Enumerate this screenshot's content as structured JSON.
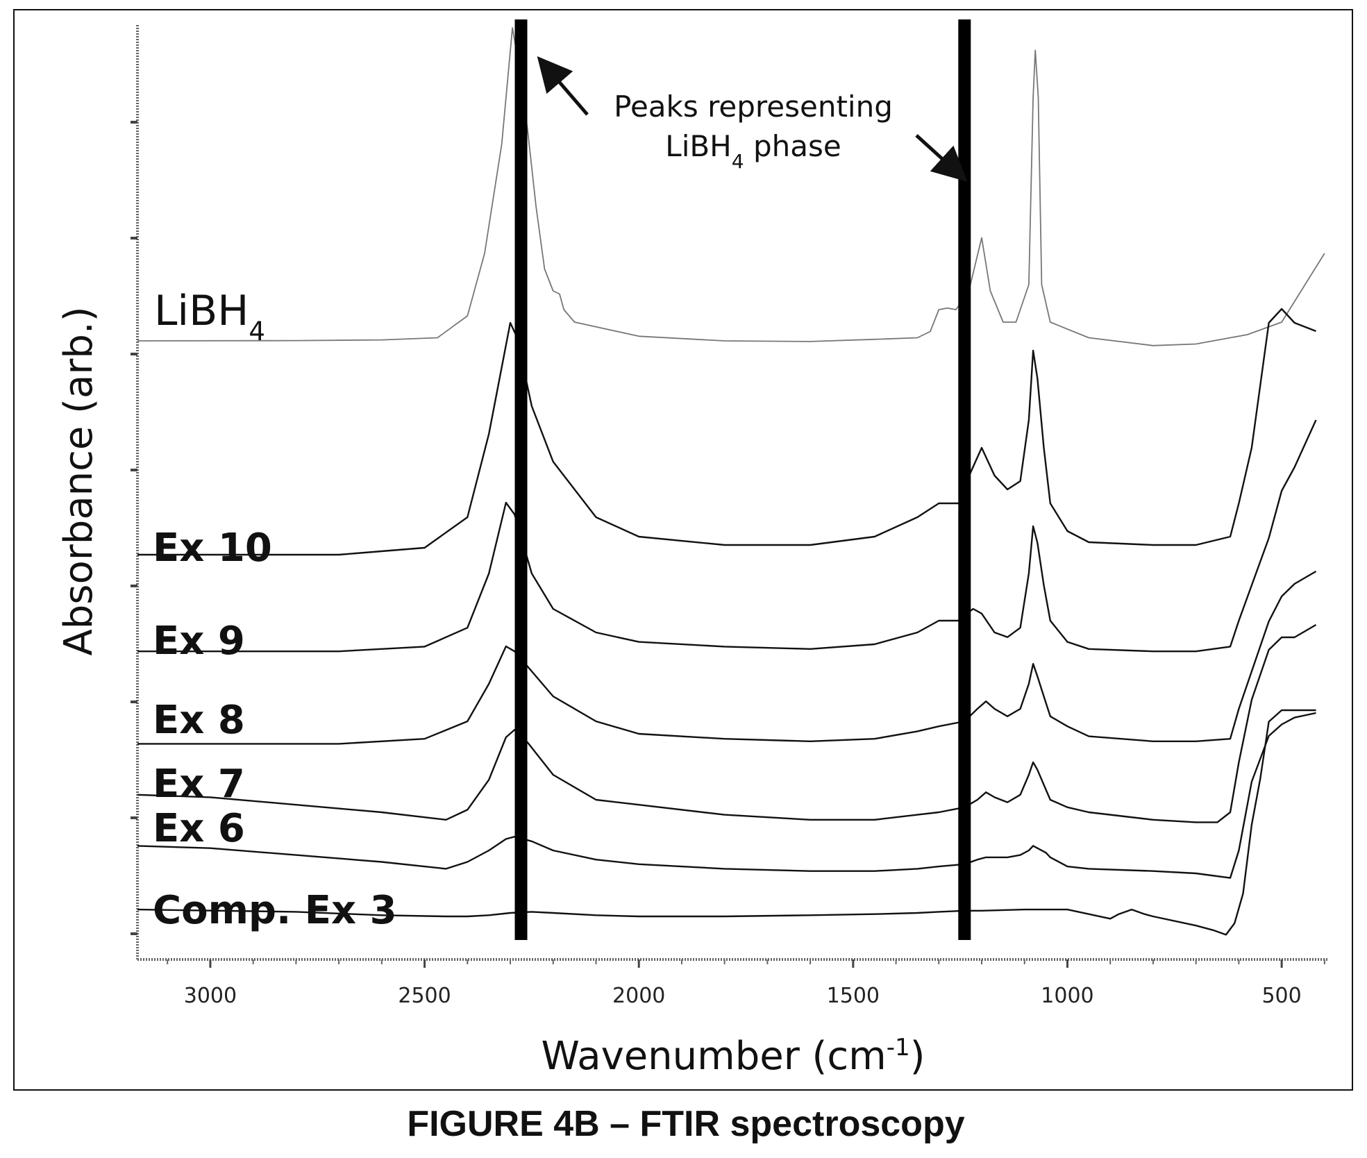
{
  "caption": "FIGURE 4B – FTIR spectroscopy",
  "chart_data": {
    "type": "line",
    "title": "",
    "xlabel": "Wavenumber (cm",
    "xlabel_sup": "-1",
    "xlabel_suffix": ")",
    "ylabel": "Absorbance (arb.)",
    "x_reversed": true,
    "xlim": [
      3170,
      390
    ],
    "x_ticks": [
      3000,
      2500,
      2000,
      1500,
      1000,
      500
    ],
    "grid": false,
    "annotation": {
      "line1": "Peaks representing",
      "line2_prefix": "LiBH",
      "line2_sub": "4",
      "line2_suffix": " phase",
      "marked_wavenumbers": [
        2275,
        1240
      ]
    },
    "series": [
      {
        "name": "LiBH",
        "name_sub": "4",
        "stroke": "#777777",
        "bold": false,
        "points": [
          [
            3170,
            0.2
          ],
          [
            2800,
            0.21
          ],
          [
            2600,
            0.23
          ],
          [
            2470,
            0.3
          ],
          [
            2400,
            1.0
          ],
          [
            2360,
            3.0
          ],
          [
            2320,
            6.5
          ],
          [
            2295,
            10.5
          ],
          [
            2280,
            9.0
          ],
          [
            2260,
            7.0
          ],
          [
            2240,
            4.5
          ],
          [
            2220,
            2.5
          ],
          [
            2200,
            1.8
          ],
          [
            2185,
            1.7
          ],
          [
            2175,
            1.2
          ],
          [
            2150,
            0.8
          ],
          [
            2000,
            0.35
          ],
          [
            1800,
            0.2
          ],
          [
            1600,
            0.18
          ],
          [
            1450,
            0.25
          ],
          [
            1350,
            0.3
          ],
          [
            1320,
            0.5
          ],
          [
            1300,
            1.2
          ],
          [
            1280,
            1.25
          ],
          [
            1260,
            1.2
          ],
          [
            1230,
            1.8
          ],
          [
            1200,
            3.5
          ],
          [
            1180,
            1.8
          ],
          [
            1150,
            0.8
          ],
          [
            1120,
            0.8
          ],
          [
            1090,
            2.0
          ],
          [
            1080,
            8.0
          ],
          [
            1075,
            9.5
          ],
          [
            1068,
            8.0
          ],
          [
            1060,
            2.0
          ],
          [
            1040,
            0.8
          ],
          [
            950,
            0.3
          ],
          [
            800,
            0.05
          ],
          [
            700,
            0.1
          ],
          [
            620,
            0.3
          ],
          [
            580,
            0.4
          ],
          [
            560,
            0.5
          ],
          [
            500,
            0.8
          ],
          [
            400,
            3.0
          ]
        ]
      },
      {
        "name": "Ex 10",
        "stroke": "#111111",
        "bold": true,
        "points": [
          [
            3170,
            0.15
          ],
          [
            2700,
            0.15
          ],
          [
            2500,
            0.4
          ],
          [
            2400,
            1.5
          ],
          [
            2350,
            4.5
          ],
          [
            2300,
            8.5
          ],
          [
            2285,
            8.0
          ],
          [
            2250,
            5.5
          ],
          [
            2200,
            3.5
          ],
          [
            2100,
            1.5
          ],
          [
            2000,
            0.8
          ],
          [
            1800,
            0.5
          ],
          [
            1600,
            0.5
          ],
          [
            1450,
            0.8
          ],
          [
            1350,
            1.5
          ],
          [
            1300,
            2.0
          ],
          [
            1270,
            2.0
          ],
          [
            1250,
            2.0
          ],
          [
            1235,
            2.8
          ],
          [
            1200,
            4.0
          ],
          [
            1170,
            3.0
          ],
          [
            1140,
            2.5
          ],
          [
            1110,
            2.8
          ],
          [
            1090,
            5.0
          ],
          [
            1080,
            7.5
          ],
          [
            1070,
            6.5
          ],
          [
            1055,
            4.0
          ],
          [
            1040,
            2.0
          ],
          [
            1000,
            1.0
          ],
          [
            950,
            0.6
          ],
          [
            800,
            0.5
          ],
          [
            700,
            0.5
          ],
          [
            620,
            0.8
          ],
          [
            600,
            2.0
          ],
          [
            570,
            4.0
          ],
          [
            530,
            8.5
          ],
          [
            500,
            9.0
          ],
          [
            470,
            8.5
          ],
          [
            420,
            8.2
          ]
        ]
      },
      {
        "name": "Ex 9",
        "stroke": "#111111",
        "bold": true,
        "points": [
          [
            3170,
            0.2
          ],
          [
            2700,
            0.2
          ],
          [
            2500,
            0.4
          ],
          [
            2400,
            1.2
          ],
          [
            2350,
            3.5
          ],
          [
            2310,
            6.5
          ],
          [
            2290,
            6.0
          ],
          [
            2250,
            3.5
          ],
          [
            2200,
            2.0
          ],
          [
            2100,
            1.0
          ],
          [
            2000,
            0.6
          ],
          [
            1800,
            0.4
          ],
          [
            1600,
            0.3
          ],
          [
            1450,
            0.5
          ],
          [
            1350,
            1.0
          ],
          [
            1300,
            1.5
          ],
          [
            1270,
            1.5
          ],
          [
            1250,
            1.5
          ],
          [
            1235,
            1.8
          ],
          [
            1220,
            2.0
          ],
          [
            1200,
            1.8
          ],
          [
            1170,
            1.0
          ],
          [
            1140,
            0.8
          ],
          [
            1110,
            1.2
          ],
          [
            1090,
            3.5
          ],
          [
            1080,
            5.5
          ],
          [
            1070,
            4.8
          ],
          [
            1055,
            3.0
          ],
          [
            1040,
            1.5
          ],
          [
            1000,
            0.6
          ],
          [
            950,
            0.3
          ],
          [
            800,
            0.2
          ],
          [
            700,
            0.2
          ],
          [
            620,
            0.4
          ],
          [
            600,
            1.5
          ],
          [
            570,
            3.0
          ],
          [
            530,
            5.0
          ],
          [
            500,
            7.0
          ],
          [
            470,
            8.0
          ],
          [
            420,
            10.0
          ]
        ]
      },
      {
        "name": "Ex 8",
        "stroke": "#111111",
        "bold": true,
        "points": [
          [
            3170,
            0.1
          ],
          [
            2700,
            0.1
          ],
          [
            2500,
            0.3
          ],
          [
            2400,
            1.0
          ],
          [
            2350,
            2.5
          ],
          [
            2310,
            4.0
          ],
          [
            2290,
            3.8
          ],
          [
            2250,
            3.0
          ],
          [
            2200,
            2.0
          ],
          [
            2100,
            1.0
          ],
          [
            2000,
            0.5
          ],
          [
            1800,
            0.3
          ],
          [
            1600,
            0.2
          ],
          [
            1450,
            0.3
          ],
          [
            1350,
            0.6
          ],
          [
            1300,
            0.8
          ],
          [
            1240,
            1.0
          ],
          [
            1210,
            1.5
          ],
          [
            1190,
            1.8
          ],
          [
            1170,
            1.5
          ],
          [
            1140,
            1.2
          ],
          [
            1110,
            1.5
          ],
          [
            1090,
            2.5
          ],
          [
            1080,
            3.3
          ],
          [
            1070,
            2.8
          ],
          [
            1055,
            2.0
          ],
          [
            1040,
            1.2
          ],
          [
            1000,
            0.8
          ],
          [
            950,
            0.4
          ],
          [
            800,
            0.2
          ],
          [
            700,
            0.2
          ],
          [
            620,
            0.3
          ],
          [
            600,
            1.5
          ],
          [
            570,
            3.0
          ],
          [
            530,
            5.0
          ],
          [
            500,
            6.0
          ],
          [
            470,
            6.5
          ],
          [
            420,
            7.0
          ]
        ]
      },
      {
        "name": "Ex 7",
        "stroke": "#111111",
        "bold": true,
        "points": [
          [
            3170,
            1.2
          ],
          [
            3000,
            1.1
          ],
          [
            2800,
            0.8
          ],
          [
            2600,
            0.5
          ],
          [
            2450,
            0.2
          ],
          [
            2400,
            0.6
          ],
          [
            2350,
            1.8
          ],
          [
            2310,
            3.5
          ],
          [
            2290,
            3.8
          ],
          [
            2260,
            3.3
          ],
          [
            2200,
            2.0
          ],
          [
            2100,
            1.0
          ],
          [
            2000,
            0.8
          ],
          [
            1800,
            0.4
          ],
          [
            1600,
            0.2
          ],
          [
            1450,
            0.2
          ],
          [
            1350,
            0.4
          ],
          [
            1300,
            0.5
          ],
          [
            1240,
            0.7
          ],
          [
            1210,
            1.0
          ],
          [
            1190,
            1.3
          ],
          [
            1170,
            1.1
          ],
          [
            1140,
            0.9
          ],
          [
            1110,
            1.2
          ],
          [
            1090,
            2.0
          ],
          [
            1080,
            2.5
          ],
          [
            1070,
            2.2
          ],
          [
            1055,
            1.6
          ],
          [
            1040,
            1.0
          ],
          [
            1000,
            0.7
          ],
          [
            950,
            0.5
          ],
          [
            800,
            0.2
          ],
          [
            700,
            0.1
          ],
          [
            650,
            0.1
          ],
          [
            620,
            0.5
          ],
          [
            600,
            2.5
          ],
          [
            570,
            5.0
          ],
          [
            530,
            7.0
          ],
          [
            500,
            7.5
          ],
          [
            470,
            7.5
          ],
          [
            420,
            8.0
          ]
        ]
      },
      {
        "name": "Ex 6",
        "stroke": "#111111",
        "bold": true,
        "points": [
          [
            3170,
            1.2
          ],
          [
            3000,
            1.1
          ],
          [
            2800,
            0.8
          ],
          [
            2600,
            0.5
          ],
          [
            2450,
            0.2
          ],
          [
            2400,
            0.5
          ],
          [
            2350,
            1.0
          ],
          [
            2310,
            1.5
          ],
          [
            2290,
            1.6
          ],
          [
            2250,
            1.4
          ],
          [
            2200,
            1.0
          ],
          [
            2100,
            0.6
          ],
          [
            2000,
            0.4
          ],
          [
            1800,
            0.2
          ],
          [
            1600,
            0.1
          ],
          [
            1450,
            0.1
          ],
          [
            1350,
            0.2
          ],
          [
            1300,
            0.3
          ],
          [
            1240,
            0.4
          ],
          [
            1210,
            0.6
          ],
          [
            1190,
            0.7
          ],
          [
            1170,
            0.7
          ],
          [
            1140,
            0.7
          ],
          [
            1110,
            0.8
          ],
          [
            1090,
            1.0
          ],
          [
            1080,
            1.2
          ],
          [
            1070,
            1.1
          ],
          [
            1050,
            0.9
          ],
          [
            1040,
            0.7
          ],
          [
            1000,
            0.3
          ],
          [
            950,
            0.2
          ],
          [
            800,
            0.1
          ],
          [
            700,
            0.0
          ],
          [
            620,
            -0.2
          ],
          [
            600,
            1.0
          ],
          [
            570,
            4.0
          ],
          [
            530,
            6.0
          ],
          [
            500,
            6.5
          ],
          [
            470,
            6.8
          ],
          [
            420,
            7.0
          ]
        ]
      },
      {
        "name": "Comp. Ex 3",
        "stroke": "#111111",
        "bold": true,
        "points": [
          [
            3170,
            0.3
          ],
          [
            2800,
            0.2
          ],
          [
            2600,
            0.05
          ],
          [
            2450,
            0.0
          ],
          [
            2400,
            0.0
          ],
          [
            2350,
            0.05
          ],
          [
            2300,
            0.15
          ],
          [
            2250,
            0.2
          ],
          [
            2200,
            0.15
          ],
          [
            2100,
            0.05
          ],
          [
            2000,
            0.0
          ],
          [
            1800,
            0.0
          ],
          [
            1600,
            0.05
          ],
          [
            1450,
            0.1
          ],
          [
            1350,
            0.15
          ],
          [
            1300,
            0.2
          ],
          [
            1240,
            0.25
          ],
          [
            1200,
            0.25
          ],
          [
            1100,
            0.3
          ],
          [
            1050,
            0.3
          ],
          [
            1000,
            0.3
          ],
          [
            950,
            0.1
          ],
          [
            900,
            -0.1
          ],
          [
            880,
            0.1
          ],
          [
            850,
            0.3
          ],
          [
            820,
            0.1
          ],
          [
            800,
            0.0
          ],
          [
            700,
            -0.4
          ],
          [
            660,
            -0.6
          ],
          [
            630,
            -0.8
          ],
          [
            610,
            -0.3
          ],
          [
            590,
            1.0
          ],
          [
            570,
            4.0
          ],
          [
            550,
            6.0
          ],
          [
            530,
            8.5
          ],
          [
            500,
            9.0
          ],
          [
            470,
            9.0
          ],
          [
            420,
            9.0
          ]
        ]
      }
    ]
  }
}
